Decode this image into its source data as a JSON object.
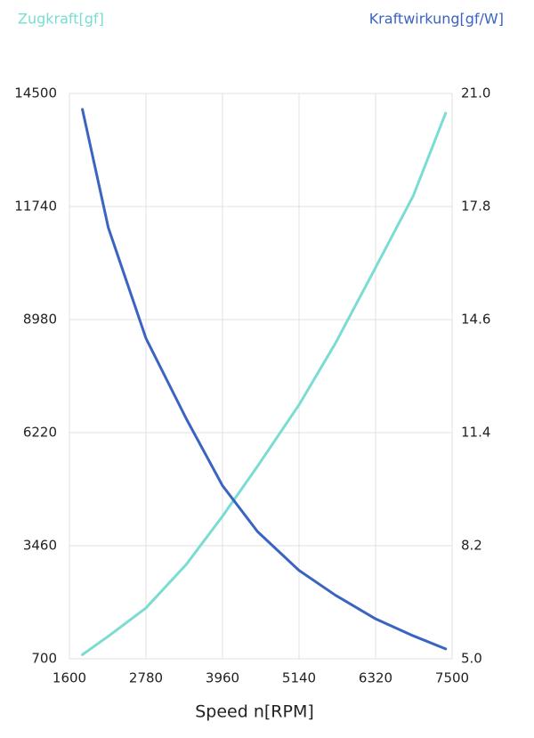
{
  "chart_data": {
    "type": "line",
    "x_label": "Speed n[RPM]",
    "x": [
      1800,
      2200,
      2780,
      3400,
      3960,
      4500,
      5140,
      5700,
      6320,
      6900,
      7400
    ],
    "xlim": [
      1600,
      7500
    ],
    "xticks": [
      1600,
      2780,
      3960,
      5140,
      6320,
      7500
    ],
    "ylim": [
      700,
      14500
    ],
    "yticks": [
      700,
      3460,
      6220,
      8980,
      11740,
      14500
    ],
    "y2lim": [
      5.0,
      21.0
    ],
    "y2ticks": [
      {
        "value": 5,
        "label": "5.0"
      },
      {
        "value": 8.2,
        "label": "8.2"
      },
      {
        "value": 11.4,
        "label": "11.4"
      },
      {
        "value": 14.6,
        "label": "14.6"
      },
      {
        "value": 17.8,
        "label": "17.8"
      },
      {
        "value": 21,
        "label": "21.0"
      }
    ],
    "grid": true,
    "series": [
      {
        "name": "Zugkraft[gf]",
        "color": "#7adcd2",
        "values": [
          800,
          1250,
          1940,
          3000,
          4180,
          5400,
          6900,
          8400,
          10250,
          12000,
          14020
        ]
      },
      {
        "name": "Kraftwirkung[gf/W]",
        "color": "#3b63c2",
        "axis": "y2",
        "values": [
          20.55,
          17.2,
          14.07,
          11.8,
          9.9,
          8.6,
          7.5,
          6.8,
          6.13,
          5.65,
          5.28
        ]
      }
    ]
  }
}
